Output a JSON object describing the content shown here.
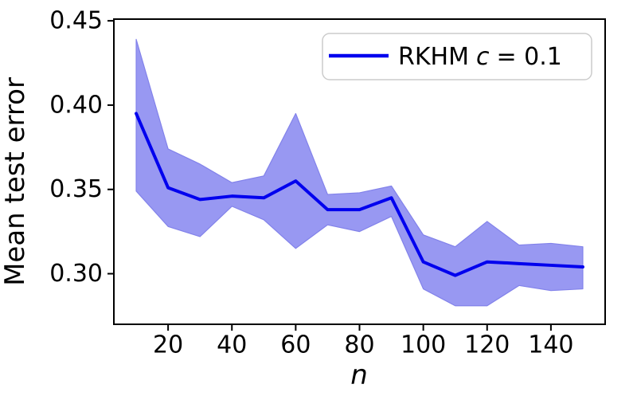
{
  "figure": {
    "background": "#ffffff",
    "axis_color": "#000000"
  },
  "chart_data": {
    "type": "line",
    "title": "",
    "xlabel": "n",
    "ylabel": "Mean test error",
    "xlim": [
      3,
      157
    ],
    "ylim": [
      0.27,
      0.451
    ],
    "xticks": [
      20,
      40,
      60,
      80,
      100,
      120,
      140
    ],
    "xtick_labels": [
      "20",
      "40",
      "60",
      "80",
      "100",
      "120",
      "140"
    ],
    "yticks": [
      0.3,
      0.35,
      0.4,
      0.45
    ],
    "ytick_labels": [
      "0.30",
      "0.35",
      "0.40",
      "0.45"
    ],
    "grid": false,
    "x": [
      10,
      20,
      30,
      40,
      50,
      60,
      70,
      80,
      90,
      100,
      110,
      120,
      130,
      140,
      150
    ],
    "series": [
      {
        "name": "RKHM c = 0.1",
        "type": "line-with-band",
        "line_color": "#0000ee",
        "band_color": "#9898f2",
        "band_edge_color": "#8282ea",
        "mean": [
          0.395,
          0.351,
          0.344,
          0.346,
          0.345,
          0.355,
          0.338,
          0.338,
          0.345,
          0.307,
          0.299,
          0.307,
          0.306,
          0.305,
          0.304
        ],
        "band_upper": [
          0.439,
          0.374,
          0.365,
          0.354,
          0.358,
          0.395,
          0.347,
          0.348,
          0.352,
          0.323,
          0.316,
          0.331,
          0.317,
          0.318,
          0.316
        ],
        "band_lower": [
          0.349,
          0.328,
          0.322,
          0.34,
          0.332,
          0.315,
          0.329,
          0.325,
          0.334,
          0.291,
          0.281,
          0.281,
          0.293,
          0.29,
          0.291
        ]
      }
    ],
    "legend": {
      "position": "upper right",
      "entries": [
        {
          "label": "RKHM c = 0.1",
          "label_pre": "RKHM",
          "label_italic": "c",
          "label_post": "= 0.1",
          "color": "#0000ee"
        }
      ]
    }
  }
}
